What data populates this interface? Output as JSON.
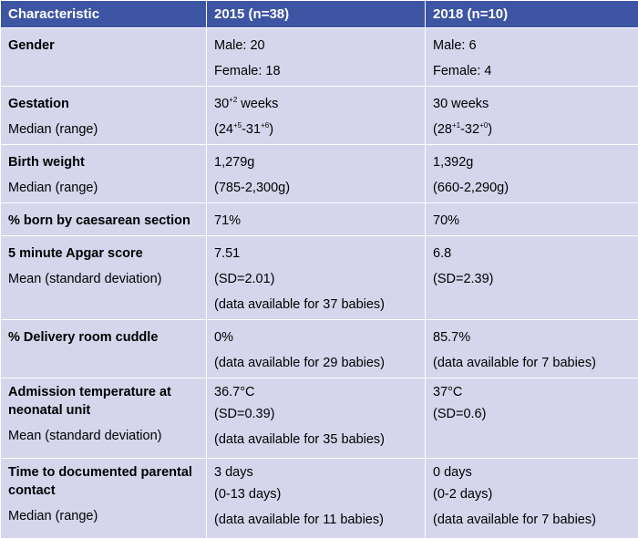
{
  "header": {
    "col1": "Characteristic",
    "col2": "2015 (n=38)",
    "col3": "2018 (n=10)"
  },
  "rows": [
    {
      "label": "Gender",
      "sub": "",
      "c2": [
        "Male: 20",
        "Female: 18"
      ],
      "c3": [
        "Male: 6",
        "Female: 4"
      ]
    },
    {
      "label": "Gestation",
      "sub": "Median (range)",
      "c2_main": "30",
      "c2_main_sup": "+2",
      "c2_main_suffix": " weeks",
      "c2_range_a": "(24",
      "c2_range_a_sup": "+5",
      "c2_range_b": "-31",
      "c2_range_b_sup": "+6",
      "c2_range_end": ")",
      "c3_main": "30 weeks",
      "c3_range_a": "(28",
      "c3_range_a_sup": "+1",
      "c3_range_b": "-32",
      "c3_range_b_sup": "+0",
      "c3_range_end": ")"
    },
    {
      "label": "Birth weight",
      "sub": "Median (range)",
      "c2": [
        "1,279g",
        "(785-2,300g)"
      ],
      "c3": [
        "1,392g",
        "(660-2,290g)"
      ]
    },
    {
      "label": "% born by caesarean section",
      "sub": "",
      "c2": [
        "71%"
      ],
      "c3": [
        "70%"
      ]
    },
    {
      "label": "5 minute Apgar score",
      "sub": "Mean (standard deviation)",
      "c2": [
        "7.51",
        "(SD=2.01)",
        "(data available for 37 babies)"
      ],
      "c3": [
        "6.8",
        "(SD=2.39)"
      ]
    },
    {
      "label": "% Delivery room cuddle",
      "sub": "",
      "c2": [
        "0%",
        "(data available for 29 babies)"
      ],
      "c3": [
        "85.7%",
        "(data available for 7 babies)"
      ]
    },
    {
      "label": "Admission temperature at neonatal unit",
      "sub": "Mean (standard deviation)",
      "c2": [
        "36.7°C",
        "(SD=0.39)",
        "(data available for 35 babies)"
      ],
      "c3": [
        "37°C",
        "(SD=0.6)"
      ]
    },
    {
      "label": "Time to documented parental contact",
      "sub": "Median (range)",
      "c2": [
        "3 days",
        "(0-13 days)",
        "(data available for 11 babies)"
      ],
      "c3": [
        "0 days",
        "(0-2 days)",
        "(data available for 7 babies)"
      ]
    }
  ]
}
